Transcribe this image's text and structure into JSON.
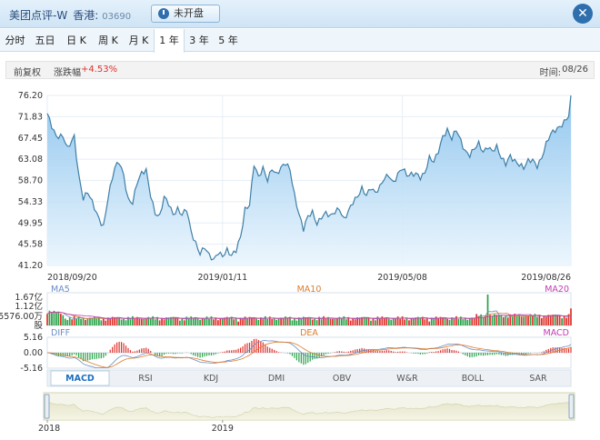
{
  "header": {
    "stock_name": "美团点评-W",
    "market": "香港:",
    "code": "03690",
    "status_label": "未开盘",
    "close_icon": "close-icon",
    "clock_icon": "clock-icon"
  },
  "tabs": [
    {
      "label": "分时"
    },
    {
      "label": "五日"
    },
    {
      "label": "日 K"
    },
    {
      "label": "周 K"
    },
    {
      "label": "月 K"
    },
    {
      "label": "1 年",
      "active": true
    },
    {
      "label": "3 年"
    },
    {
      "label": "5 年"
    }
  ],
  "info": {
    "adjust_label": "前复权",
    "change_label": "涨跌幅",
    "change_value": "+4.53%",
    "time_label": "时间:",
    "time_value": "08/26"
  },
  "colors": {
    "up": "#e0312a",
    "down": "#2aa34a",
    "line": "#4d8eb5",
    "ma5": "#6a8ec4",
    "ma10": "#e07b2a",
    "ma20": "#c33ab3"
  },
  "chart_data": {
    "type": "area",
    "y_ticks": [
      "76.20",
      "71.83",
      "67.45",
      "63.08",
      "58.70",
      "54.33",
      "49.95",
      "45.58",
      "41.20"
    ],
    "ylim": [
      41.2,
      76.2
    ],
    "x_ticks": [
      {
        "label": "2018/09/20",
        "i": 0
      },
      {
        "label": "2019/01/11",
        "i": 78
      },
      {
        "label": "2019/05/08",
        "i": 158
      },
      {
        "label": "2019/08/26",
        "i": 233
      }
    ],
    "count": 234,
    "anchors": [
      [
        0,
        72.5
      ],
      [
        4,
        68
      ],
      [
        7,
        67.5
      ],
      [
        9,
        65
      ],
      [
        12,
        68
      ],
      [
        14,
        60
      ],
      [
        16,
        55
      ],
      [
        18,
        56
      ],
      [
        20,
        54
      ],
      [
        23,
        51
      ],
      [
        25,
        49.5
      ],
      [
        27,
        55
      ],
      [
        30,
        61
      ],
      [
        32,
        62.5
      ],
      [
        34,
        60
      ],
      [
        36,
        55
      ],
      [
        38,
        54
      ],
      [
        40,
        58
      ],
      [
        42,
        60
      ],
      [
        44,
        61
      ],
      [
        46,
        56
      ],
      [
        48,
        52
      ],
      [
        50,
        51
      ],
      [
        52,
        55
      ],
      [
        54,
        54
      ],
      [
        56,
        52
      ],
      [
        58,
        53
      ],
      [
        60,
        51.5
      ],
      [
        62,
        52.5
      ],
      [
        64,
        48
      ],
      [
        66,
        46
      ],
      [
        68,
        44
      ],
      [
        70,
        45
      ],
      [
        72,
        43
      ],
      [
        74,
        42
      ],
      [
        76,
        44
      ],
      [
        78,
        43.5
      ],
      [
        80,
        44.5
      ],
      [
        82,
        43
      ],
      [
        84,
        44
      ],
      [
        86,
        47
      ],
      [
        88,
        53
      ],
      [
        90,
        54
      ],
      [
        92,
        62
      ],
      [
        94,
        59
      ],
      [
        96,
        61
      ],
      [
        98,
        59
      ],
      [
        100,
        61.5
      ],
      [
        102,
        60
      ],
      [
        104,
        61
      ],
      [
        106,
        62
      ],
      [
        108,
        61
      ],
      [
        110,
        56
      ],
      [
        112,
        52
      ],
      [
        114,
        48.5
      ],
      [
        116,
        51
      ],
      [
        118,
        52
      ],
      [
        120,
        50
      ],
      [
        122,
        51.5
      ],
      [
        124,
        52
      ],
      [
        126,
        51
      ],
      [
        128,
        52
      ],
      [
        130,
        53
      ],
      [
        132,
        51
      ],
      [
        134,
        52.5
      ],
      [
        136,
        54
      ],
      [
        138,
        55
      ],
      [
        140,
        57
      ],
      [
        142,
        56
      ],
      [
        144,
        57.5
      ],
      [
        146,
        56
      ],
      [
        148,
        57
      ],
      [
        150,
        59
      ],
      [
        152,
        60
      ],
      [
        154,
        58.5
      ],
      [
        156,
        60
      ],
      [
        158,
        61
      ],
      [
        160,
        59.5
      ],
      [
        162,
        60
      ],
      [
        164,
        60.5
      ],
      [
        166,
        59.5
      ],
      [
        168,
        60
      ],
      [
        170,
        63
      ],
      [
        172,
        62.5
      ],
      [
        174,
        65
      ],
      [
        176,
        68
      ],
      [
        178,
        69
      ],
      [
        180,
        67
      ],
      [
        182,
        69
      ],
      [
        184,
        67
      ],
      [
        186,
        65
      ],
      [
        188,
        64
      ],
      [
        190,
        65
      ],
      [
        192,
        66
      ],
      [
        194,
        64.5
      ],
      [
        196,
        66
      ],
      [
        198,
        65
      ],
      [
        200,
        65.5
      ],
      [
        202,
        63
      ],
      [
        204,
        62
      ],
      [
        206,
        64
      ],
      [
        208,
        63
      ],
      [
        210,
        62
      ],
      [
        212,
        61
      ],
      [
        214,
        62.5
      ],
      [
        216,
        63
      ],
      [
        218,
        62
      ],
      [
        220,
        63.5
      ],
      [
        222,
        66
      ],
      [
        224,
        68
      ],
      [
        226,
        69
      ],
      [
        228,
        70
      ],
      [
        230,
        71
      ],
      [
        232,
        72
      ],
      [
        233,
        76.2
      ]
    ],
    "volume_ticks": [
      "1.67亿",
      "1.12亿",
      "5576.00万",
      "股"
    ],
    "ma_labels": [
      "MA5",
      "MA10",
      "MA20"
    ],
    "macd_labels": [
      "DIFF",
      "DEA",
      "MACD"
    ],
    "macd_ticks": [
      "5.16",
      "0.00",
      "-5.16"
    ],
    "macd_ylim": [
      -5.16,
      5.16
    ],
    "indicators": [
      "MACD",
      "RSI",
      "KDJ",
      "DMI",
      "OBV",
      "W&R",
      "BOLL",
      "SAR"
    ],
    "active_indicator": "MACD",
    "navigator_ticks": [
      {
        "label": "2018",
        "i": 0
      },
      {
        "label": "2019",
        "i": 78
      }
    ]
  }
}
